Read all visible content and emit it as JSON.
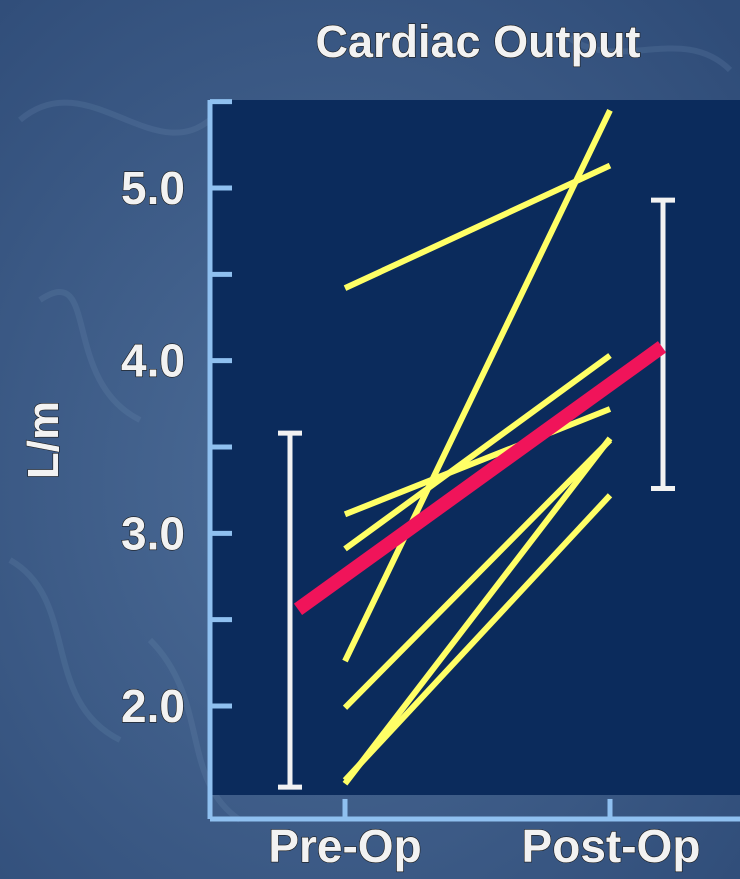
{
  "chart_data": {
    "type": "line",
    "title": "Cardiac Output",
    "ylabel": "L/m",
    "xlabel": "",
    "categories": [
      "Pre-Op",
      "Post-Op"
    ],
    "yticks": [
      2.0,
      3.0,
      4.0,
      5.0
    ],
    "ytick_labels": [
      "2.0",
      "3.0",
      "4.0",
      "5.0"
    ],
    "ylim": [
      1.45,
      5.45
    ],
    "series": [
      {
        "values": [
          4.42,
          5.13
        ]
      },
      {
        "values": [
          2.26,
          5.45
        ]
      },
      {
        "values": [
          3.11,
          3.72
        ]
      },
      {
        "values": [
          2.91,
          4.03
        ]
      },
      {
        "values": [
          1.99,
          3.54
        ]
      },
      {
        "values": [
          1.57,
          3.22
        ]
      },
      {
        "values": [
          1.55,
          3.55
        ]
      }
    ],
    "mean": {
      "values": [
        2.56,
        4.08
      ]
    },
    "error_bars": [
      {
        "category": "Pre-Op",
        "low": 1.53,
        "high": 3.58
      },
      {
        "category": "Post-Op",
        "low": 3.26,
        "high": 4.93
      }
    ],
    "colors": {
      "background": "#3c5a87",
      "plot_area": "#0b2b5c",
      "axis": "#8fc0f0",
      "patients": "#ffff66",
      "mean": "#f0145a",
      "error_bar": "#f2f2f2",
      "text": "#f2f2f2"
    }
  }
}
